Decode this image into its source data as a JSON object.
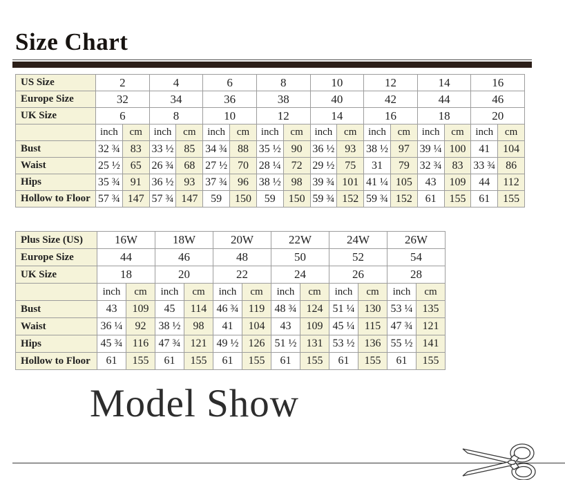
{
  "header": {
    "title": "Size Chart"
  },
  "tables": [
    {
      "name": "standard-sizes",
      "size_rows": [
        {
          "label": "US Size",
          "values": [
            "2",
            "4",
            "6",
            "8",
            "10",
            "12",
            "14",
            "16"
          ]
        },
        {
          "label": "Europe Size",
          "values": [
            "32",
            "34",
            "36",
            "38",
            "40",
            "42",
            "44",
            "46"
          ]
        },
        {
          "label": "UK Size",
          "values": [
            "6",
            "8",
            "10",
            "12",
            "14",
            "16",
            "18",
            "20"
          ]
        }
      ],
      "unit_labels": [
        "inch",
        "cm"
      ],
      "measurements": [
        {
          "label": "Bust",
          "inch": [
            "32 ¾",
            "33 ½",
            "34 ¾",
            "35 ½",
            "36 ½",
            "38 ½",
            "39 ¼",
            "41"
          ],
          "cm": [
            "83",
            "85",
            "88",
            "90",
            "93",
            "97",
            "100",
            "104"
          ]
        },
        {
          "label": "Waist",
          "inch": [
            "25 ½",
            "26 ¾",
            "27 ½",
            "28 ¼",
            "29 ½",
            "31",
            "32 ¾",
            "33 ¾"
          ],
          "cm": [
            "65",
            "68",
            "70",
            "72",
            "75",
            "79",
            "83",
            "86"
          ]
        },
        {
          "label": "Hips",
          "inch": [
            "35 ¾",
            "36 ½",
            "37 ¾",
            "38 ½",
            "39 ¾",
            "41 ¼",
            "43",
            "44"
          ],
          "cm": [
            "91",
            "93",
            "96",
            "98",
            "101",
            "105",
            "109",
            "112"
          ]
        },
        {
          "label": "Hollow to Floor",
          "inch": [
            "57 ¾",
            "57 ¾",
            "59",
            "59",
            "59 ¾",
            "59 ¾",
            "61",
            "61"
          ],
          "cm": [
            "147",
            "147",
            "150",
            "150",
            "152",
            "152",
            "155",
            "155"
          ]
        }
      ]
    },
    {
      "name": "plus-sizes",
      "size_rows": [
        {
          "label": "Plus Size (US)",
          "values": [
            "16W",
            "18W",
            "20W",
            "22W",
            "24W",
            "26W"
          ]
        },
        {
          "label": "Europe Size",
          "values": [
            "44",
            "46",
            "48",
            "50",
            "52",
            "54"
          ]
        },
        {
          "label": "UK Size",
          "values": [
            "18",
            "20",
            "22",
            "24",
            "26",
            "28"
          ]
        }
      ],
      "unit_labels": [
        "inch",
        "cm"
      ],
      "measurements": [
        {
          "label": "Bust",
          "inch": [
            "43",
            "45",
            "46 ¾",
            "48 ¾",
            "51 ¼",
            "53 ¼"
          ],
          "cm": [
            "109",
            "114",
            "119",
            "124",
            "130",
            "135"
          ]
        },
        {
          "label": "Waist",
          "inch": [
            "36 ¼",
            "38 ½",
            "41",
            "43",
            "45 ¼",
            "47 ¾"
          ],
          "cm": [
            "92",
            "98",
            "104",
            "109",
            "115",
            "121"
          ]
        },
        {
          "label": "Hips",
          "inch": [
            "45 ¾",
            "47 ¾",
            "49 ½",
            "51 ½",
            "53 ½",
            "55 ½"
          ],
          "cm": [
            "116",
            "121",
            "126",
            "131",
            "136",
            "141"
          ]
        },
        {
          "label": "Hollow to Floor",
          "inch": [
            "61",
            "61",
            "61",
            "61",
            "61",
            "61"
          ],
          "cm": [
            "155",
            "155",
            "155",
            "155",
            "155",
            "155"
          ]
        }
      ]
    }
  ],
  "footer": {
    "model_show_title": "Model Show"
  },
  "colors": {
    "cream": "#f5f3d9",
    "table_border": "#9c9c9c",
    "accent_bar": "#2b1e18",
    "text": "#1f1f1f"
  }
}
